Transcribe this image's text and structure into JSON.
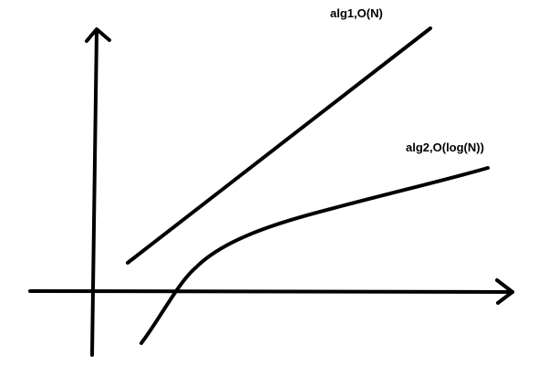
{
  "chart_data": {
    "type": "line",
    "title": "",
    "xlabel": "",
    "ylabel": "",
    "grid": false,
    "legend": "none",
    "series": [
      {
        "name": "alg1,O(N)",
        "curve": "linear",
        "color": "#000000"
      },
      {
        "name": "alg2,O(log(N))",
        "curve": "logarithmic",
        "color": "#000000"
      }
    ]
  }
}
